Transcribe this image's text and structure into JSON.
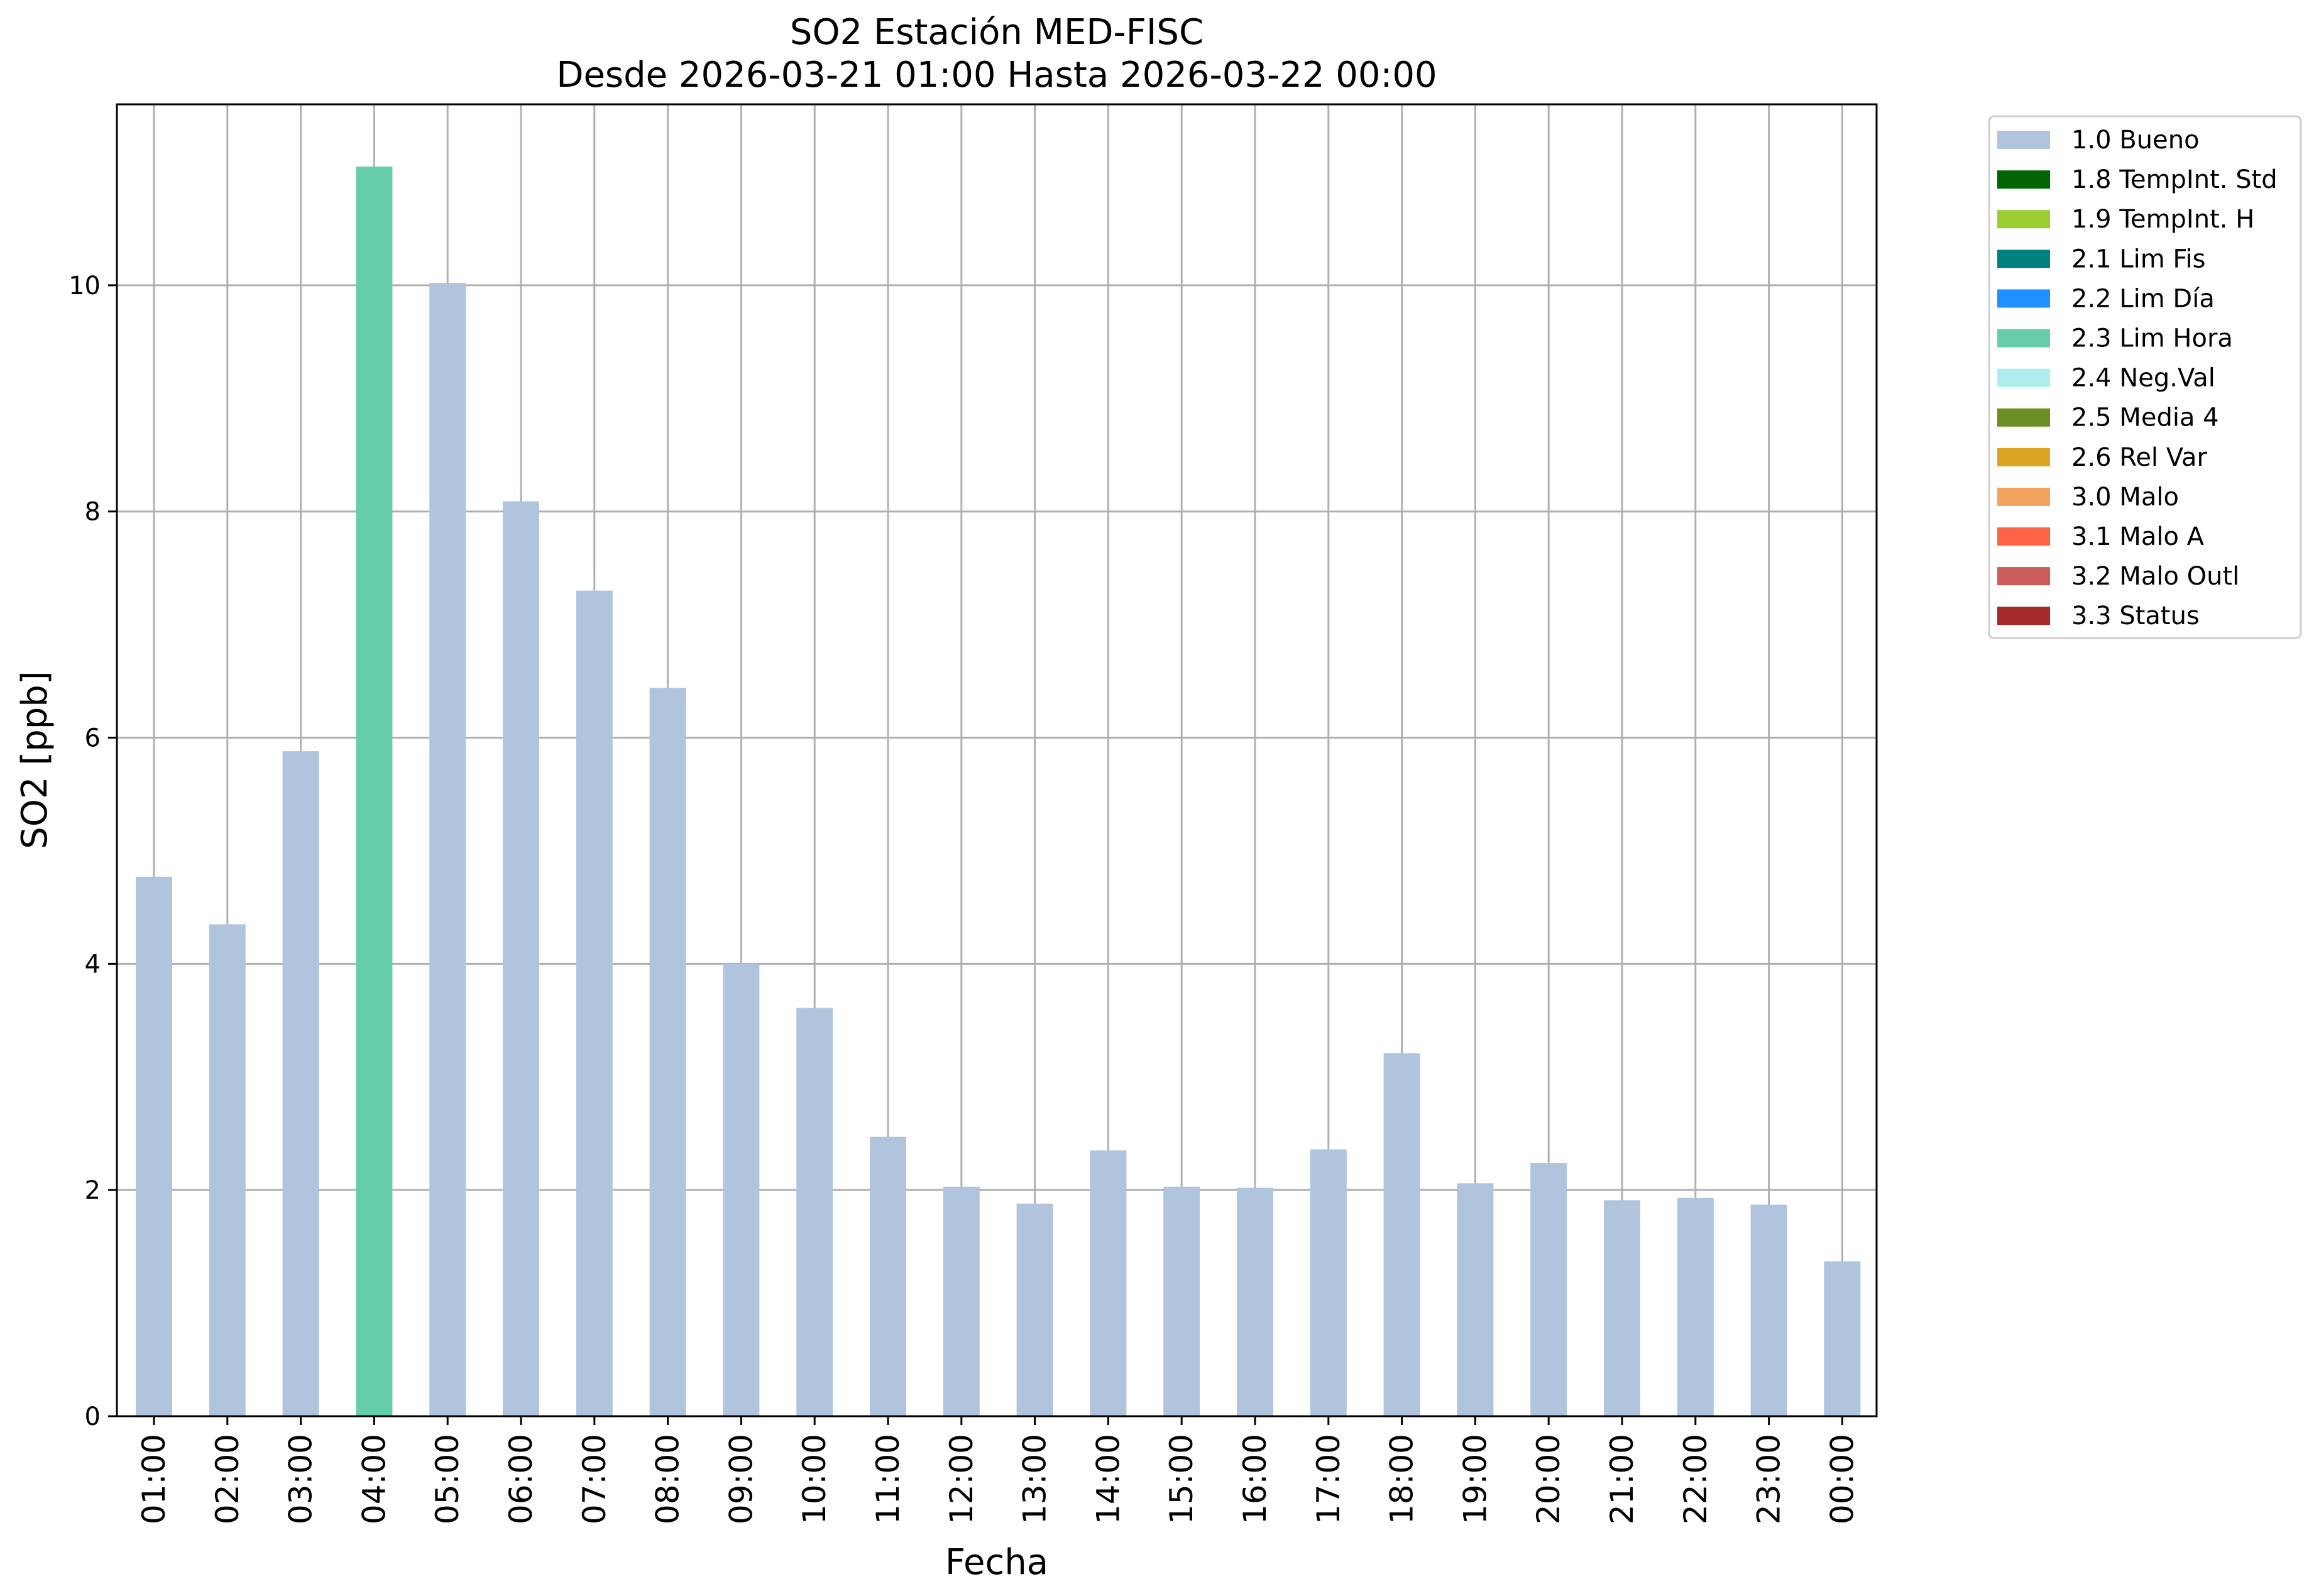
{
  "chart_data": {
    "type": "bar",
    "title": "SO2 Estación MED-FISC",
    "subtitle": "Desde 2026-03-21 01:00 Hasta 2026-03-22 00:00",
    "xlabel": "Fecha",
    "ylabel": "SO2 [ppb]",
    "ylim": [
      0,
      11.6
    ],
    "yticks": [
      0,
      2,
      4,
      6,
      8,
      10
    ],
    "grid": true,
    "legend_position": "outside-top-right",
    "categories": [
      "01:00",
      "02:00",
      "03:00",
      "04:00",
      "05:00",
      "06:00",
      "07:00",
      "08:00",
      "09:00",
      "10:00",
      "11:00",
      "12:00",
      "13:00",
      "14:00",
      "15:00",
      "16:00",
      "17:00",
      "18:00",
      "19:00",
      "20:00",
      "21:00",
      "22:00",
      "23:00",
      "00:00"
    ],
    "values": [
      4.77,
      4.35,
      5.88,
      11.05,
      10.02,
      8.09,
      7.3,
      6.44,
      4.0,
      3.61,
      2.47,
      2.03,
      1.88,
      2.35,
      2.03,
      2.02,
      2.36,
      3.21,
      2.06,
      2.24,
      1.91,
      1.93,
      1.87,
      1.37
    ],
    "flags": [
      "1.0 Bueno",
      "1.0 Bueno",
      "1.0 Bueno",
      "2.3 Lim Hora",
      "1.0 Bueno",
      "1.0 Bueno",
      "1.0 Bueno",
      "1.0 Bueno",
      "1.0 Bueno",
      "1.0 Bueno",
      "1.0 Bueno",
      "1.0 Bueno",
      "1.0 Bueno",
      "1.0 Bueno",
      "1.0 Bueno",
      "1.0 Bueno",
      "1.0 Bueno",
      "1.0 Bueno",
      "1.0 Bueno",
      "1.0 Bueno",
      "1.0 Bueno",
      "1.0 Bueno",
      "1.0 Bueno",
      "1.0 Bueno"
    ],
    "legend": [
      {
        "label": "1.0 Bueno",
        "color": "#b0c4de"
      },
      {
        "label": "1.8 TempInt. Std",
        "color": "#006400"
      },
      {
        "label": "1.9 TempInt. H",
        "color": "#9acd32"
      },
      {
        "label": "2.1 Lim Fis",
        "color": "#008080"
      },
      {
        "label": "2.2 Lim Día",
        "color": "#1e90ff"
      },
      {
        "label": "2.3 Lim Hora",
        "color": "#66cdaa"
      },
      {
        "label": "2.4 Neg.Val",
        "color": "#afeeee"
      },
      {
        "label": "2.5 Media 4",
        "color": "#6b8e23"
      },
      {
        "label": "2.6 Rel Var",
        "color": "#daa520"
      },
      {
        "label": "3.0 Malo",
        "color": "#f4a460"
      },
      {
        "label": "3.1 Malo A",
        "color": "#ff6347"
      },
      {
        "label": "3.2 Malo Outl",
        "color": "#cd5c5c"
      },
      {
        "label": "3.3 Status",
        "color": "#a52a2a"
      }
    ]
  }
}
